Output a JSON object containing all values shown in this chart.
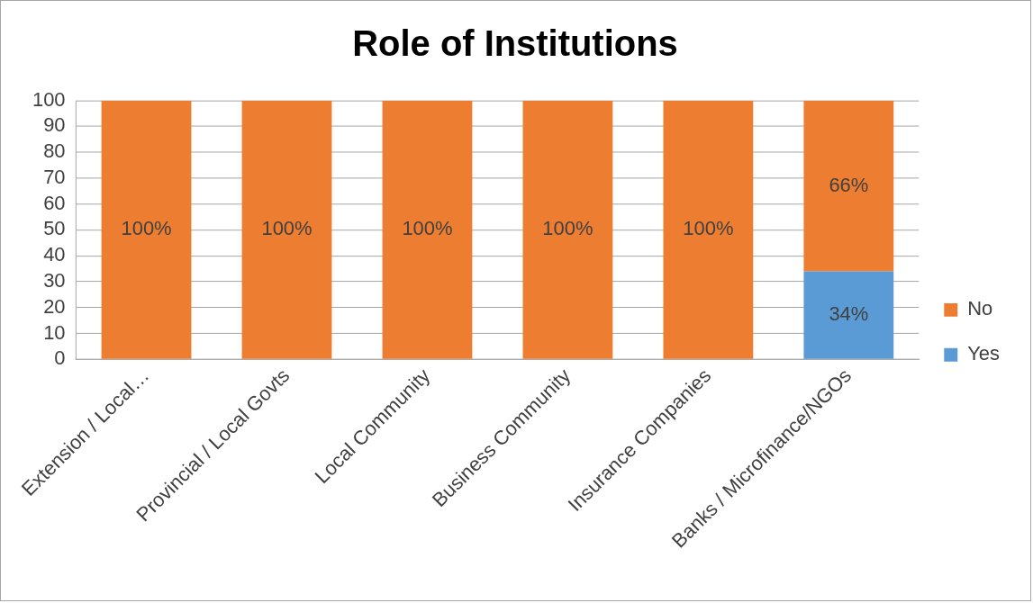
{
  "chart_data": {
    "type": "bar",
    "title": "Role of Institutions",
    "categories": [
      "Extension / Local…",
      "Provincial / Local Govts",
      "Local Community",
      "Business Community",
      "Insurance Companies",
      "Banks / Microfinance/NGOs"
    ],
    "series": [
      {
        "name": "Yes",
        "color": "#5b9bd5",
        "values": [
          0,
          0,
          0,
          0,
          0,
          34
        ],
        "value_labels": [
          null,
          null,
          null,
          null,
          null,
          "34%"
        ]
      },
      {
        "name": "No",
        "color": "#ed7d31",
        "values": [
          100,
          100,
          100,
          100,
          100,
          66
        ],
        "value_labels": [
          "100%",
          "100%",
          "100%",
          "100%",
          "100%",
          "66%"
        ]
      }
    ],
    "stacked": true,
    "ylim": [
      0,
      100
    ],
    "yticks": [
      0,
      10,
      20,
      30,
      40,
      50,
      60,
      70,
      80,
      90,
      100
    ],
    "grid": "y",
    "legend": "right"
  }
}
